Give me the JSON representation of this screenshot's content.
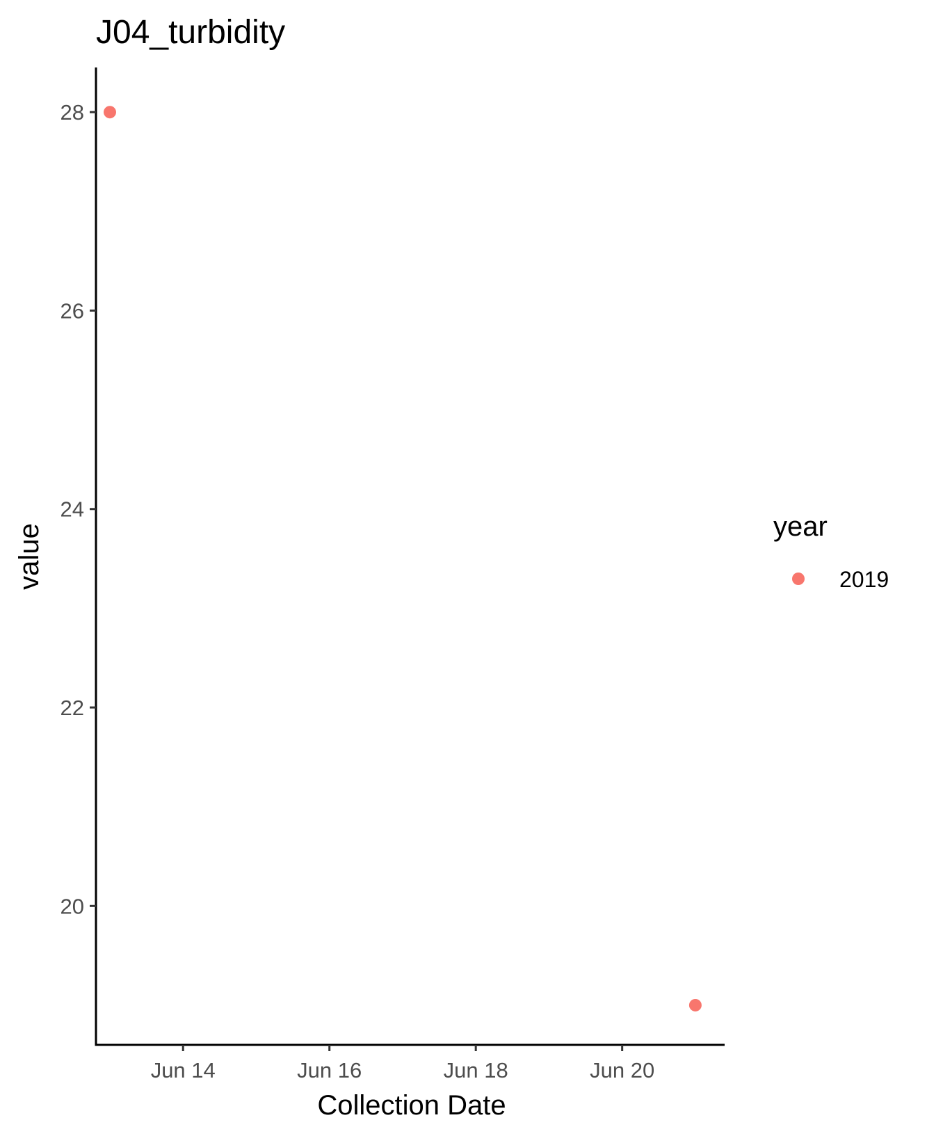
{
  "chart_data": {
    "type": "scatter",
    "title": "J04_turbidity",
    "xlabel": "Collection Date",
    "ylabel": "value",
    "x_type": "date",
    "x_ticks": [
      "2019-06-14",
      "2019-06-16",
      "2019-06-18",
      "2019-06-20"
    ],
    "x_tick_labels": [
      "Jun 14",
      "Jun 16",
      "Jun 18",
      "Jun 20"
    ],
    "y_ticks": [
      20,
      22,
      24,
      26,
      28
    ],
    "xlim": [
      "2019-06-12",
      "2019-06-21"
    ],
    "ylim": [
      18.6,
      28.45
    ],
    "grid": false,
    "legend": {
      "title": "year",
      "placement": "right"
    },
    "series": [
      {
        "name": "2019",
        "color": "#F8766D",
        "points": [
          {
            "x": "2019-06-13",
            "y": 28
          },
          {
            "x": "2019-06-21",
            "y": 19
          }
        ]
      }
    ]
  }
}
